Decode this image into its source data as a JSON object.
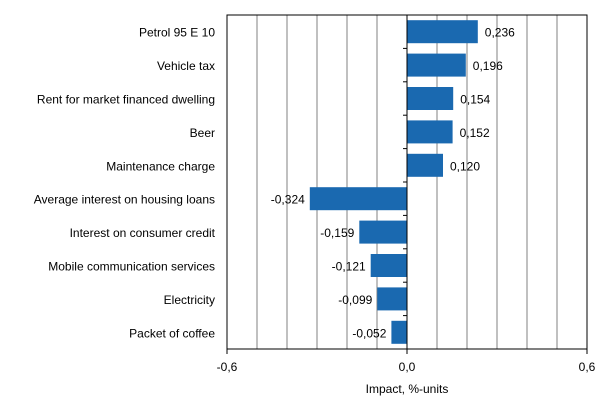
{
  "chart_data": {
    "type": "bar",
    "orientation": "horizontal",
    "categories": [
      "Petrol 95 E 10",
      "Vehicle tax",
      "Rent for market financed dwelling",
      "Beer",
      "Maintenance charge",
      "Average interest on housing loans",
      "Interest on consumer credit",
      "Mobile communication services",
      "Electricity",
      "Packet of coffee"
    ],
    "values": [
      0.236,
      0.196,
      0.154,
      0.152,
      0.12,
      -0.324,
      -0.159,
      -0.121,
      -0.099,
      -0.052
    ],
    "data_labels": [
      "0,236",
      "0,196",
      "0,154",
      "0,152",
      "0,120",
      "-0,324",
      "-0,159",
      "-0,121",
      "-0,099",
      "-0,052"
    ],
    "title": "",
    "xlabel": "Impact, %-units",
    "ylabel": "",
    "xlim": [
      -0.6,
      0.6
    ],
    "x_ticks": [
      -0.6,
      0.0,
      0.6
    ],
    "x_tick_labels": [
      "-0,6",
      "0,0",
      "0,6"
    ],
    "grid_step": 0.1,
    "grid": true,
    "bar_color": "#1a69b0",
    "grid_color": "#808080"
  }
}
